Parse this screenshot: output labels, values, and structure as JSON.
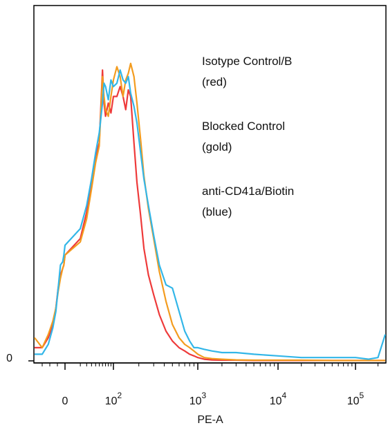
{
  "chart_data": {
    "type": "line",
    "title": "",
    "xlabel": "PE-A",
    "ylabel": "",
    "x_scale": "biexponential",
    "x_range": [
      -400,
      250000
    ],
    "x_ticks": [
      {
        "value": 0,
        "label": "0"
      },
      {
        "value": 100,
        "base": "10",
        "exp": "2"
      },
      {
        "value": 1000,
        "base": "10",
        "exp": "3"
      },
      {
        "value": 10000,
        "base": "10",
        "exp": "4"
      },
      {
        "value": 100000,
        "base": "10",
        "exp": "5"
      }
    ],
    "y_ticks": [
      {
        "value": 0,
        "label": "0"
      }
    ],
    "ylim": [
      0,
      105
    ],
    "grid": false,
    "legend_position": "top-right",
    "legend": [
      {
        "line1": "Isotype Control/B",
        "line2": "(red)"
      },
      {
        "line1": "Blocked Control",
        "line2": "(gold)"
      },
      {
        "line1": "anti-CD41a/Biotin",
        "line2": "(blue)"
      }
    ],
    "series": [
      {
        "name": "Isotype Control/B",
        "color": "#ee3a3a",
        "x": [
          -400,
          -300,
          -220,
          -160,
          -120,
          -90,
          -60,
          -30,
          -15,
          0,
          10,
          20,
          30,
          40,
          50,
          60,
          65,
          70,
          80,
          90,
          100,
          110,
          120,
          130,
          140,
          150,
          160,
          175,
          190,
          210,
          230,
          260,
          300,
          350,
          420,
          500,
          600,
          700,
          800,
          900,
          1000,
          1200,
          1500,
          2000,
          3000,
          5000,
          10000,
          20000,
          50000,
          100000,
          250000
        ],
        "y": [
          4,
          4,
          7,
          11,
          16,
          22,
          26,
          28,
          29,
          32,
          37,
          45,
          53,
          62,
          66,
          88,
          78,
          74,
          78,
          75,
          80,
          80,
          83,
          80,
          76,
          82,
          80,
          66,
          54,
          44,
          34,
          26,
          20,
          14,
          9,
          6,
          4,
          3,
          2,
          1.5,
          1,
          0.5,
          0.3,
          0.2,
          0.2,
          0.1,
          0.1,
          0.1,
          0.1,
          0.1,
          0.1
        ]
      },
      {
        "name": "Blocked Control",
        "color": "#f39c1f",
        "x": [
          -400,
          -300,
          -220,
          -160,
          -120,
          -90,
          -60,
          -30,
          -15,
          0,
          10,
          20,
          30,
          40,
          50,
          60,
          65,
          70,
          80,
          90,
          100,
          110,
          120,
          130,
          140,
          150,
          160,
          175,
          190,
          210,
          230,
          260,
          300,
          350,
          420,
          500,
          600,
          700,
          800,
          900,
          1000,
          1200,
          1500,
          2000,
          3000,
          5000,
          10000,
          20000,
          50000,
          100000,
          250000
        ],
        "y": [
          7,
          4,
          8,
          12,
          16,
          21,
          25,
          28,
          29,
          32,
          36,
          43,
          52,
          60,
          65,
          86,
          80,
          76,
          74,
          80,
          85,
          89,
          86,
          80,
          85,
          87,
          90,
          86,
          78,
          67,
          56,
          46,
          37,
          27,
          18,
          11,
          7,
          5,
          4,
          3,
          2,
          1,
          0.7,
          0.5,
          0.3,
          0.2,
          0.2,
          0.2,
          0.1,
          0.1,
          0.1
        ]
      },
      {
        "name": "anti-CD41a/Biotin",
        "color": "#32b6e8",
        "x": [
          -400,
          -300,
          -220,
          -160,
          -120,
          -90,
          -60,
          -30,
          -15,
          0,
          10,
          20,
          30,
          40,
          50,
          60,
          65,
          70,
          80,
          90,
          100,
          110,
          120,
          130,
          140,
          150,
          160,
          175,
          190,
          210,
          230,
          260,
          300,
          350,
          420,
          500,
          600,
          700,
          800,
          900,
          1000,
          1200,
          1500,
          2000,
          3000,
          5000,
          10000,
          20000,
          50000,
          100000,
          150000,
          200000,
          250000
        ],
        "y": [
          2,
          2,
          5,
          10,
          15,
          22,
          29,
          30,
          32,
          35,
          40,
          47,
          55,
          63,
          69,
          78,
          84,
          83,
          79,
          85,
          83,
          84,
          88,
          85,
          84,
          86,
          81,
          77,
          72,
          63,
          55,
          47,
          38,
          29,
          23,
          22,
          15,
          9,
          6,
          4,
          4,
          3.5,
          3,
          2.5,
          2.5,
          2,
          1.5,
          1,
          1,
          1,
          0.5,
          1,
          8
        ]
      }
    ]
  }
}
